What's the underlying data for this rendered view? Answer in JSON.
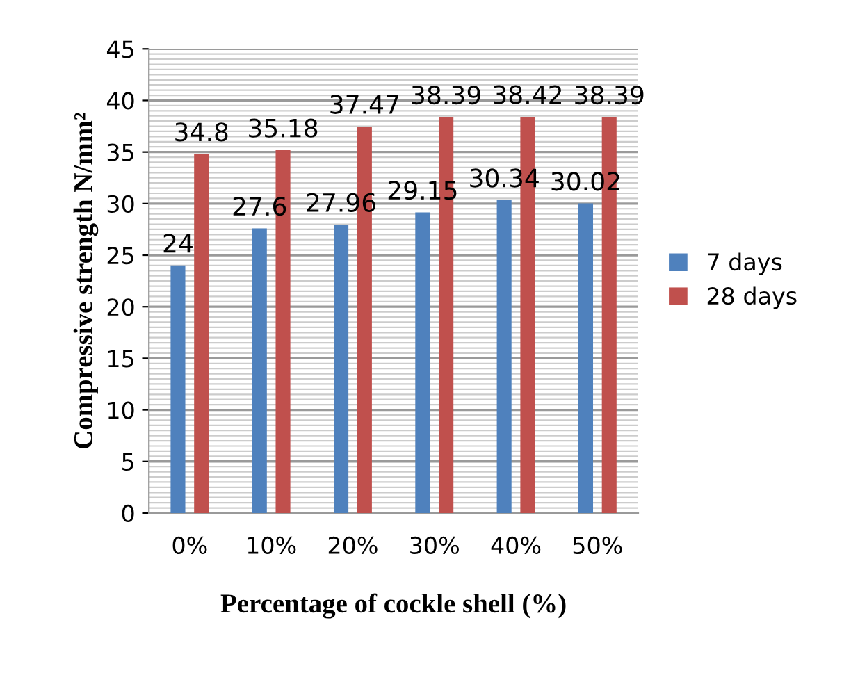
{
  "chart_data": {
    "type": "bar",
    "xlabel": "Percentage of cockle shell (%)",
    "ylabel": "Compressive strength N/mm²",
    "categories": [
      "0%",
      "10%",
      "20%",
      "30%",
      "40%",
      "50%"
    ],
    "series": [
      {
        "name": "7 days",
        "color": "#4f81bd",
        "values": [
          24,
          27.6,
          27.96,
          29.15,
          30.34,
          30.02
        ]
      },
      {
        "name": "28 days",
        "color": "#c0504d",
        "values": [
          34.8,
          35.18,
          37.47,
          38.39,
          38.42,
          38.39
        ]
      }
    ],
    "ylim": [
      0,
      45
    ],
    "yticks": [
      0,
      5,
      10,
      15,
      20,
      25,
      30,
      35,
      40,
      45
    ],
    "grid": "y",
    "legend": "right",
    "data_labels": true
  }
}
